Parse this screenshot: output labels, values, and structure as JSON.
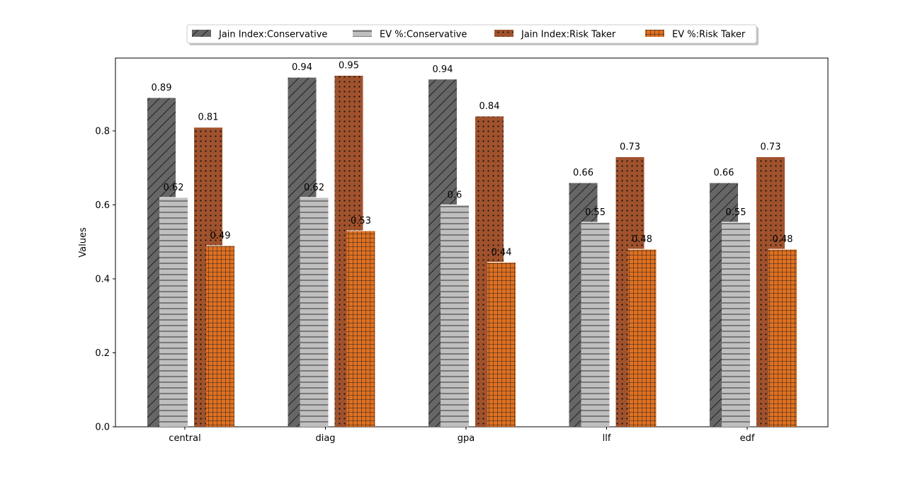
{
  "chart_data": {
    "type": "bar",
    "categories": [
      "central",
      "diag",
      "gpa",
      "llf",
      "edf"
    ],
    "ylabel": "Values",
    "xlabel": "",
    "title": "",
    "ylim": [
      0,
      0.997
    ],
    "yticks": [
      "0.0",
      "0.2",
      "0.4",
      "0.6",
      "0.8"
    ],
    "grid": false,
    "legend_position": "top-center",
    "series": [
      {
        "name": "Jain Index:Conservative",
        "values": [
          0.89,
          0.945,
          0.94,
          0.66,
          0.66
        ],
        "labels": [
          "0.89",
          "0.94",
          "0.94",
          "0.66",
          "0.66"
        ],
        "color": "#666666",
        "pattern": "hatch-diagonal"
      },
      {
        "name": "EV %:Conservative",
        "values": [
          0.62,
          0.62,
          0.6,
          0.553,
          0.553
        ],
        "labels": [
          "0.62",
          "0.62",
          "0.6",
          "0.55",
          "0.55"
        ],
        "color": "#bfbfbf",
        "pattern": "hatch-horizontal"
      },
      {
        "name": "Jain Index:Risk Taker",
        "values": [
          0.81,
          0.95,
          0.84,
          0.73,
          0.73
        ],
        "labels": [
          "0.81",
          "0.95",
          "0.84",
          "0.73",
          "0.73"
        ],
        "color": "#a0522d",
        "pattern": "dots"
      },
      {
        "name": "EV %:Risk Taker",
        "values": [
          0.49,
          0.53,
          0.445,
          0.48,
          0.48
        ],
        "labels": [
          "0.49",
          "0.53",
          "0.44",
          "0.48",
          "0.48"
        ],
        "color": "#e07020",
        "pattern": "grid"
      }
    ]
  }
}
